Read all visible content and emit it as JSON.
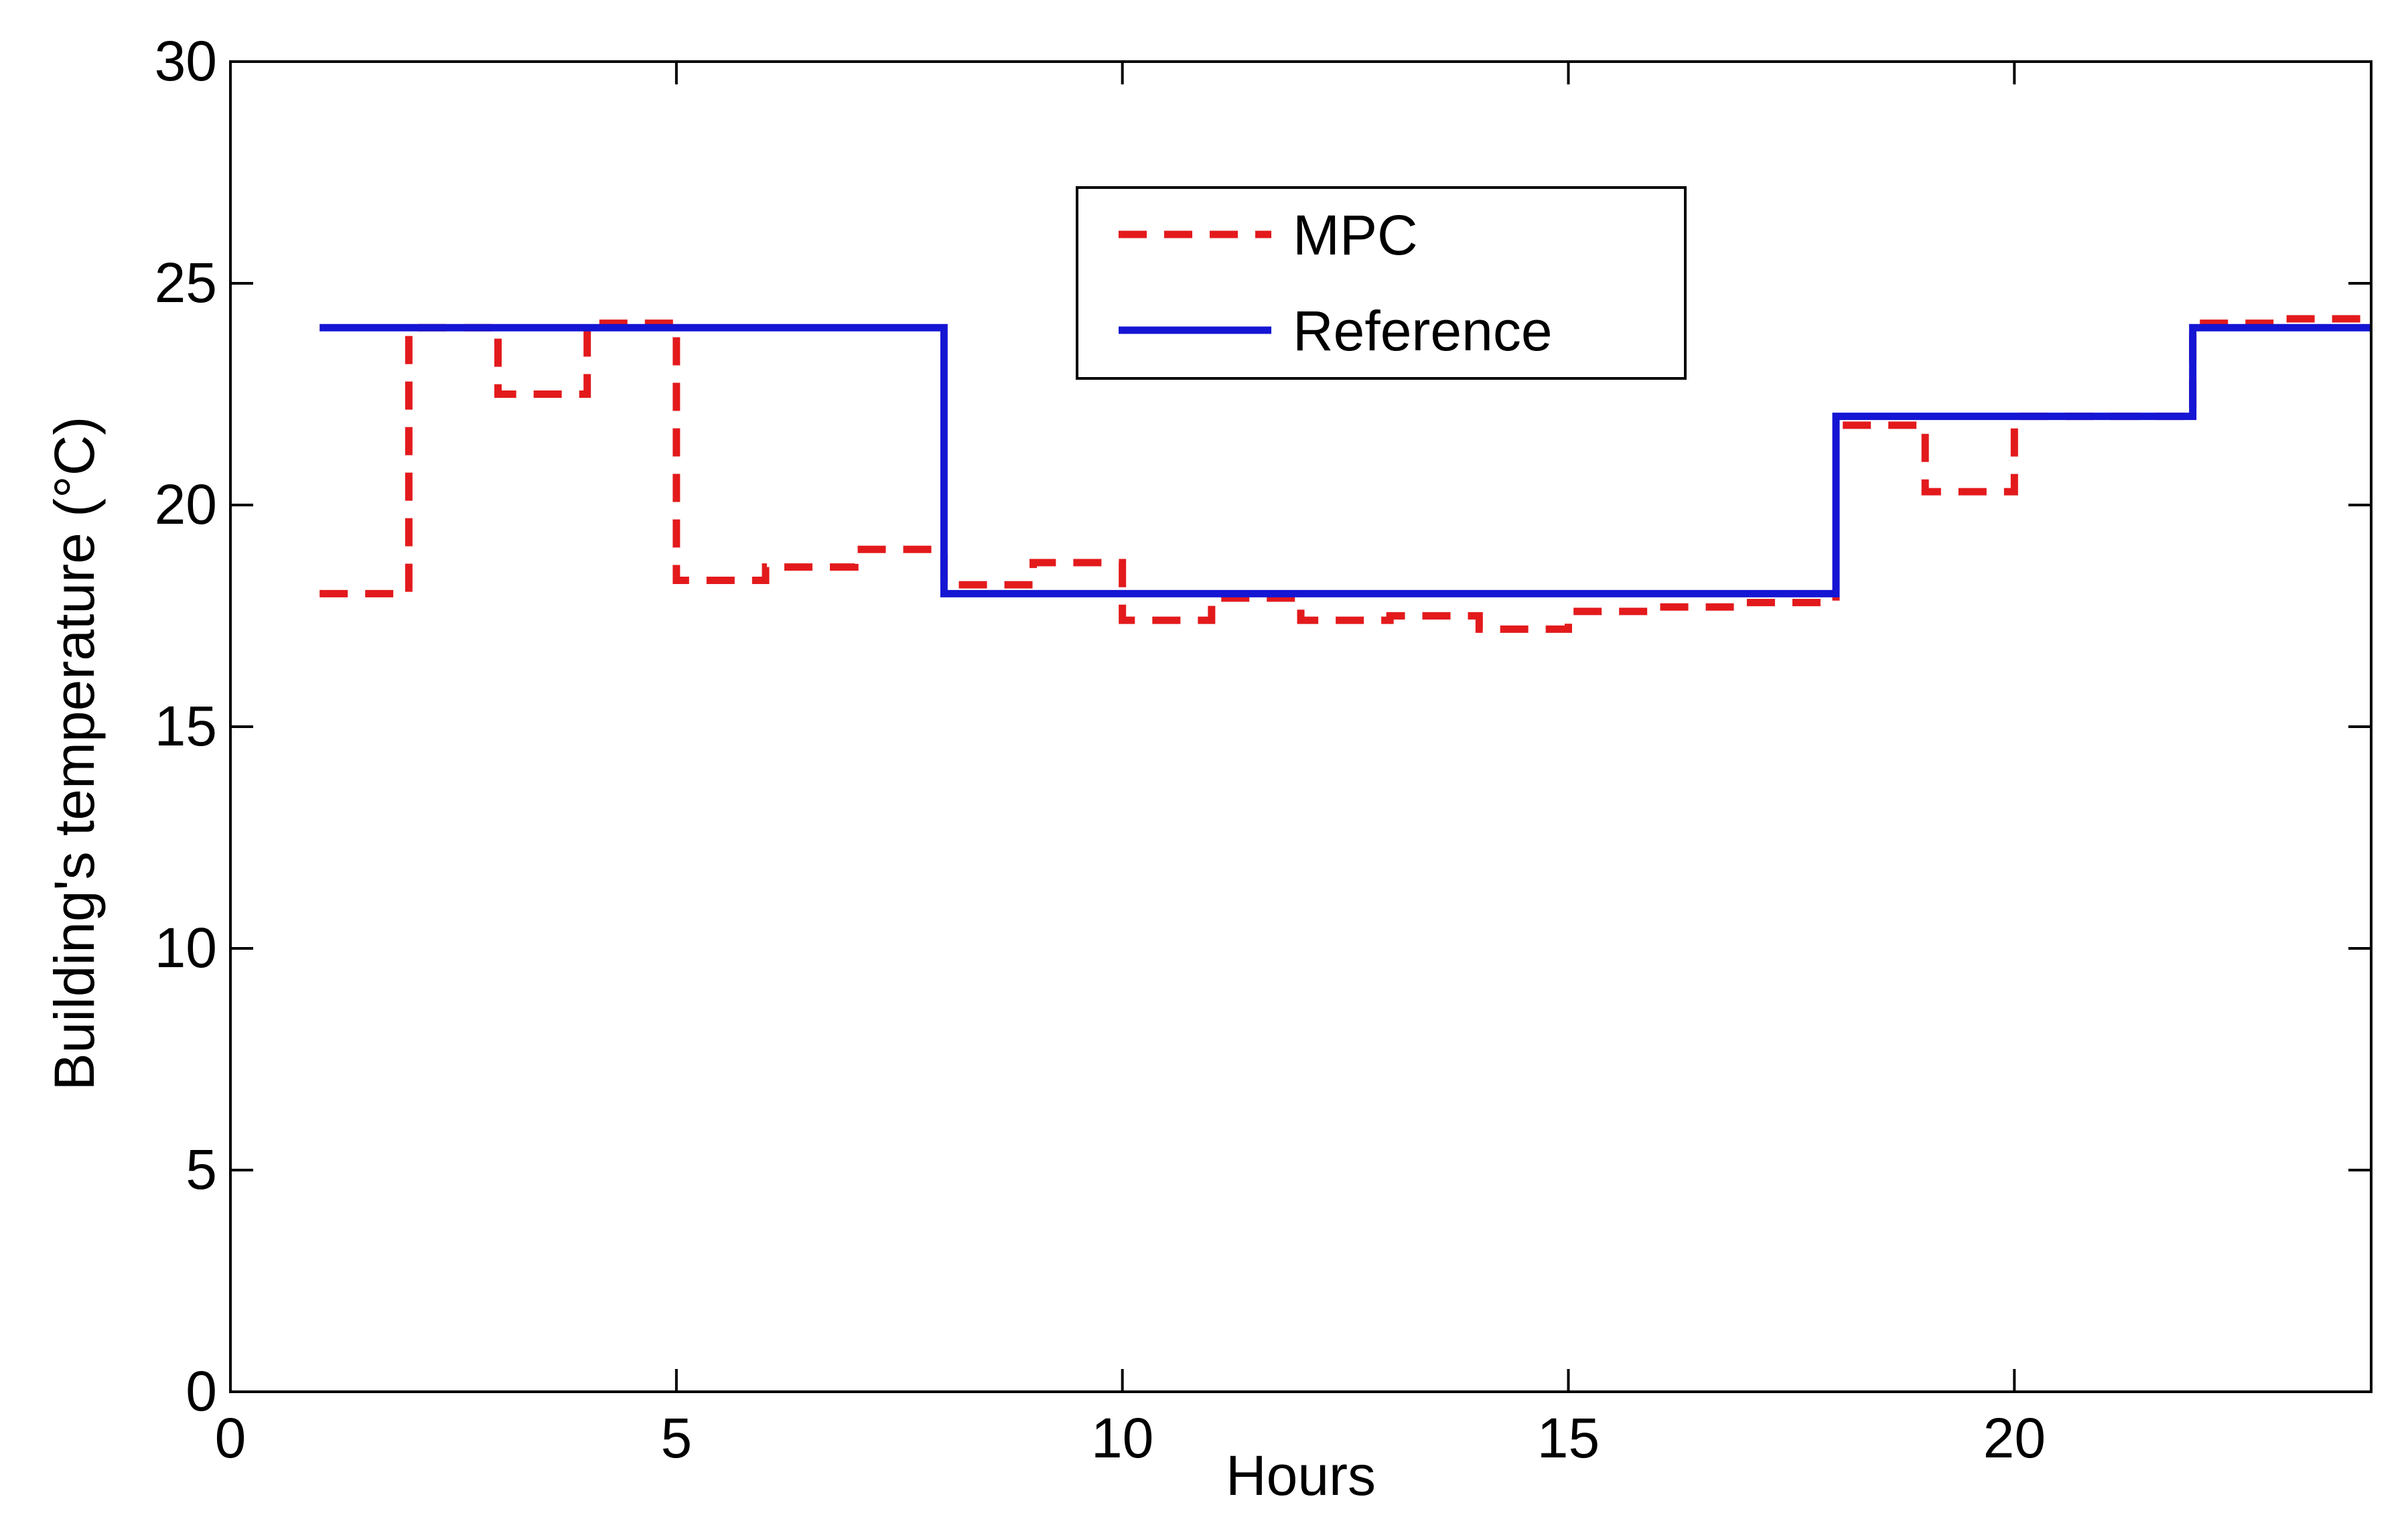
{
  "chart_data": {
    "type": "line",
    "title": "",
    "xlabel": "Hours",
    "ylabel": "Building's temperature (°C)",
    "xlim": [
      0,
      24
    ],
    "ylim": [
      0,
      30
    ],
    "x_ticks": [
      0,
      5,
      10,
      15,
      20
    ],
    "y_ticks": [
      0,
      5,
      10,
      15,
      20,
      25,
      30
    ],
    "grid": false,
    "legend": {
      "position": "top-center",
      "boxed": true
    },
    "series": [
      {
        "name": "MPC",
        "color": "#e31a1c",
        "style": "dashed",
        "step": true,
        "x": [
          1,
          2,
          3,
          4,
          5,
          6,
          7,
          8,
          9,
          10,
          11,
          12,
          13,
          14,
          15,
          16,
          17,
          18,
          19,
          20,
          21,
          22,
          23,
          24
        ],
        "values": [
          18.0,
          24.0,
          22.5,
          24.1,
          18.3,
          18.6,
          19.0,
          18.2,
          18.7,
          17.4,
          17.9,
          17.4,
          17.5,
          17.2,
          17.6,
          17.7,
          17.8,
          21.8,
          20.3,
          22.0,
          22.0,
          24.1,
          24.2,
          24.2
        ]
      },
      {
        "name": "Reference",
        "color": "#1515d4",
        "style": "solid",
        "step": true,
        "x": [
          1,
          8,
          18,
          22,
          24
        ],
        "values": [
          24,
          18,
          22,
          24,
          24
        ]
      }
    ]
  }
}
